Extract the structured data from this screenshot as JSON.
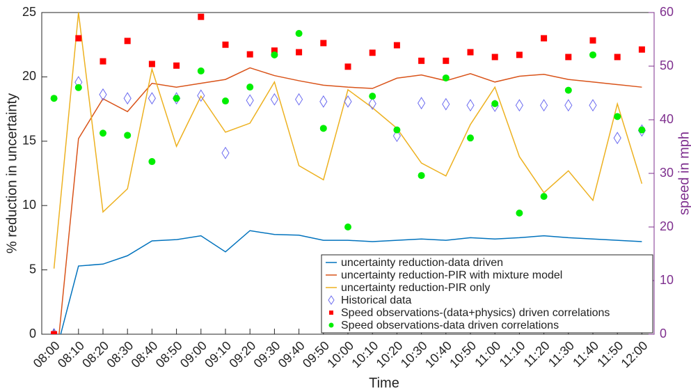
{
  "chart_data": {
    "type": "line",
    "categories": [
      "08:00",
      "08:10",
      "08:20",
      "08:30",
      "08:40",
      "08:50",
      "09:00",
      "09:10",
      "09:20",
      "09:30",
      "09:40",
      "09:50",
      "10:00",
      "10:10",
      "10:20",
      "10:30",
      "10:40",
      "10:50",
      "11:00",
      "11:10",
      "11:20",
      "11:30",
      "11:40",
      "11:50",
      "12:00"
    ],
    "x_label": "Time",
    "y_label": "% reduction in uncertainty",
    "y2_label": "speed in mph",
    "y2_color": "#7e2f8e",
    "ylim": [
      0,
      25
    ],
    "yticks": [
      0,
      5,
      10,
      15,
      20,
      25
    ],
    "y2lim": [
      0,
      60
    ],
    "y2ticks": [
      0,
      10,
      20,
      30,
      40,
      50,
      60
    ],
    "legend": "lower right",
    "series": [
      {
        "name": "uncertainty reduction-data driven",
        "color": "#0072bd",
        "mark": "line",
        "values": [
          -2,
          5.3,
          5.45,
          6.1,
          7.25,
          7.35,
          7.65,
          6.4,
          8.05,
          7.75,
          7.7,
          7.3,
          7.3,
          7.2,
          7.3,
          7.4,
          7.3,
          7.5,
          7.4,
          7.5,
          7.65,
          7.5,
          7.4,
          7.3,
          7.2
        ]
      },
      {
        "name": "uncertainty reduction-PIR with mixture model",
        "color": "#d95319",
        "mark": "line",
        "values": [
          -4,
          15.2,
          18.3,
          17.3,
          19.5,
          19.2,
          19.5,
          19.8,
          20.7,
          20.1,
          19.7,
          19.35,
          19.2,
          19.1,
          19.9,
          20.15,
          19.7,
          20.25,
          19.6,
          20.05,
          20.2,
          19.8,
          19.6,
          19.4,
          19.2
        ]
      },
      {
        "name": "uncertainty reduction-PIR only",
        "color": "#edb120",
        "mark": "line",
        "values": [
          5.1,
          25,
          9.5,
          11.3,
          20.6,
          14.6,
          18.5,
          15.7,
          16.4,
          19.6,
          13.1,
          12.0,
          19.0,
          17.6,
          16.0,
          13.3,
          12.3,
          16.3,
          19.2,
          13.8,
          11.0,
          12.7,
          10.4,
          17.9,
          11.7
        ]
      },
      {
        "name": "Historical data",
        "color": "#6b6bf0",
        "mark": "diamond",
        "axis": "y2",
        "values": [
          0,
          47.0,
          44.7,
          44.0,
          44.0,
          44.0,
          44.5,
          33.8,
          43.6,
          43.8,
          43.8,
          43.4,
          43.4,
          43.0,
          37.0,
          43.1,
          42.9,
          42.7,
          42.6,
          42.7,
          42.7,
          42.7,
          42.7,
          36.6,
          38.0
        ]
      },
      {
        "name": "Speed observations-(data+physics) driven correlations",
        "color": "#ff0000",
        "mark": "square",
        "axis": "y2",
        "values": [
          0,
          55.2,
          50.9,
          54.7,
          50.4,
          50.1,
          59.2,
          54.0,
          52.2,
          52.9,
          52.6,
          54.3,
          49.9,
          52.5,
          53.9,
          51.0,
          51.0,
          52.6,
          51.7,
          52.1,
          55.2,
          51.7,
          54.8,
          51.7,
          53.1
        ]
      },
      {
        "name": "Speed observations-data driven correlations",
        "color": "#00ee00",
        "mark": "circle",
        "axis": "y2",
        "values": [
          44.0,
          46.0,
          37.5,
          37.1,
          32.2,
          44.0,
          49.1,
          43.5,
          46.1,
          52.1,
          56.1,
          38.4,
          20.0,
          44.4,
          38.1,
          29.6,
          47.8,
          36.6,
          43.0,
          22.6,
          25.7,
          45.5,
          52.1,
          40.6,
          38.1
        ]
      }
    ]
  }
}
